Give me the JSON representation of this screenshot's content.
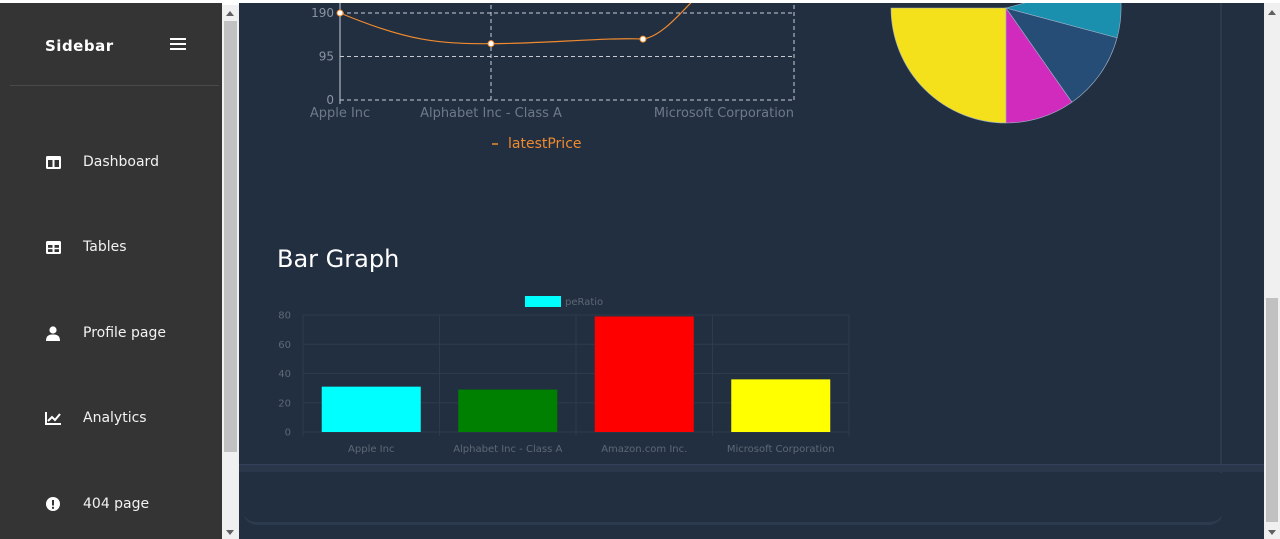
{
  "sidebar": {
    "brand": "Sidebar",
    "items": [
      {
        "label": "Dashboard",
        "icon": "dashboard-icon"
      },
      {
        "label": "Tables",
        "icon": "table-icon"
      },
      {
        "label": "Profile page",
        "icon": "user-icon"
      },
      {
        "label": "Analytics",
        "icon": "chart-line-icon"
      },
      {
        "label": "404 page",
        "icon": "exclamation-circle-icon"
      }
    ]
  },
  "main": {
    "bar_section_title": "Bar Graph"
  },
  "colors": {
    "sidebar_bg": "#343434",
    "main_bg": "#222f41",
    "line_series": "#f08a2e"
  },
  "chart_data": [
    {
      "type": "line",
      "categories": [
        "Apple Inc",
        "Alphabet Inc - Class A",
        "Microsoft Corporation"
      ],
      "series": [
        {
          "name": "latestPrice",
          "values": [
            190,
            123,
            133
          ]
        }
      ],
      "yticks": [
        0,
        95,
        190
      ],
      "grid": true,
      "legend": "bottom"
    },
    {
      "type": "pie",
      "slices": [
        {
          "color": "#f5e01c",
          "value": 36
        },
        {
          "color": "#d12bbd",
          "value": 18
        },
        {
          "color": "#264d75",
          "value": 17
        },
        {
          "color": "#1a8fae",
          "value": 12
        }
      ],
      "note": "partially visible, cropped at top"
    },
    {
      "type": "bar",
      "title": "Bar Graph",
      "categories": [
        "Apple Inc",
        "Alphabet Inc - Class A",
        "Amazon.com Inc.",
        "Microsoft Corporation"
      ],
      "series": [
        {
          "name": "peRatio",
          "values": [
            31,
            29,
            79,
            36
          ]
        }
      ],
      "bar_colors": [
        "#00ffff",
        "#008000",
        "#ff0000",
        "#ffff00"
      ],
      "legend_color": "#00ffff",
      "ylim": [
        0,
        80
      ],
      "yticks": [
        0,
        20,
        40,
        60,
        80
      ],
      "grid": true,
      "legend": "top"
    }
  ]
}
